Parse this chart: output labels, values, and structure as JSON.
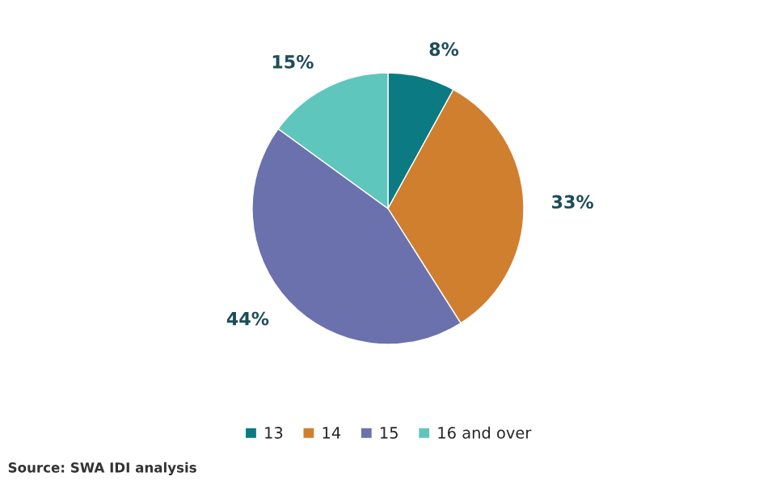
{
  "chart_data": {
    "type": "pie",
    "categories": [
      "13",
      "14",
      "15",
      "16 and over"
    ],
    "values": [
      8,
      33,
      44,
      15
    ],
    "colors": [
      "#0b7a83",
      "#d07f2f",
      "#6a71ad",
      "#5ec6bd"
    ],
    "value_labels": [
      "8%",
      "33%",
      "44%",
      "15%"
    ],
    "legend": "bottom",
    "annotations": [
      "Source: SWA IDI analysis"
    ]
  }
}
